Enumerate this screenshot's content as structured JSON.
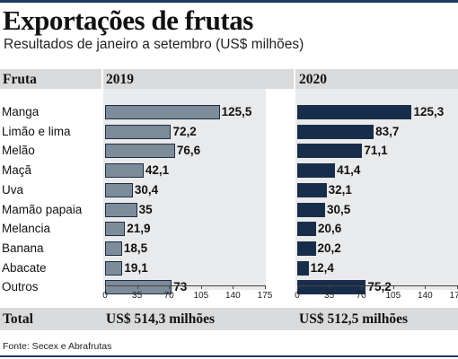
{
  "title": "Exportações de frutas",
  "subtitle": "Resultados de janeiro a setembro (US$ milhões)",
  "source": "Fonte: Secex e Abrafrutas",
  "colors": {
    "bar_2019": "#7d8c9b",
    "bar_2020": "#172d4c",
    "band": "#d9dadc",
    "panel": "#e9eaec"
  },
  "chart_data": {
    "type": "bar",
    "orientation": "horizontal",
    "column_header": "Fruta",
    "categories": [
      "Manga",
      "Limão e lima",
      "Melão",
      "Maçã",
      "Uva",
      "Mamão papaia",
      "Melancia",
      "Banana",
      "Abacate",
      "Outros"
    ],
    "xlim": [
      0,
      175
    ],
    "ticks": [
      0,
      35,
      70,
      105,
      140,
      175
    ],
    "series": [
      {
        "name": "2019",
        "values": [
          125.5,
          72.2,
          76.6,
          42.1,
          30.4,
          35,
          21.9,
          18.5,
          19.1,
          73
        ],
        "labels": [
          "125,5",
          "72,2",
          "76,6",
          "42,1",
          "30,4",
          "35",
          "21,9",
          "18,5",
          "19,1",
          "73"
        ],
        "total": "US$ 514,3 milhões"
      },
      {
        "name": "2020",
        "values": [
          125.3,
          83.7,
          71.1,
          41.4,
          32.1,
          30.5,
          20.6,
          20.2,
          12.4,
          75.2
        ],
        "labels": [
          "125,3",
          "83,7",
          "71,1",
          "41,4",
          "32,1",
          "30,5",
          "20,6",
          "20,2",
          "12,4",
          "75,2"
        ],
        "total": "US$ 512,5 milhões"
      }
    ],
    "total_label": "Total"
  }
}
